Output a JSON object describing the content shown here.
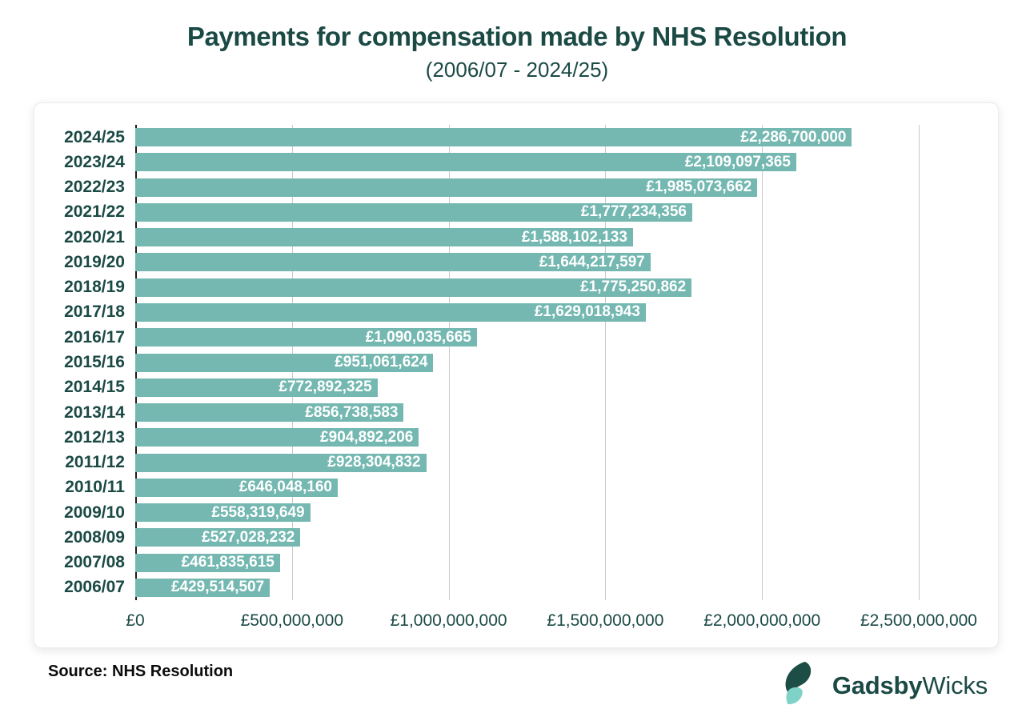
{
  "header": {
    "title": "Payments for compensation made by NHS Resolution",
    "subtitle": "(2006/07 - 2024/25)"
  },
  "chart_data": {
    "type": "bar",
    "orientation": "horizontal",
    "title": "Payments for compensation made by NHS Resolution",
    "subtitle": "(2006/07 - 2024/25)",
    "categories": [
      "2024/25",
      "2023/24",
      "2022/23",
      "2021/22",
      "2020/21",
      "2019/20",
      "2018/19",
      "2017/18",
      "2016/17",
      "2015/16",
      "2014/15",
      "2013/14",
      "2012/13",
      "2011/12",
      "2010/11",
      "2009/10",
      "2008/09",
      "2007/08",
      "2006/07"
    ],
    "values": [
      2286700000,
      2109097365,
      1985073662,
      1777234356,
      1588102133,
      1644217597,
      1775250862,
      1629018943,
      1090035665,
      951061624,
      772892325,
      856738583,
      904892206,
      928304832,
      646048160,
      558319649,
      527028232,
      461835615,
      429514507
    ],
    "value_labels": [
      "£2,286,700,000",
      "£2,109,097,365",
      "£1,985,073,662",
      "£1,777,234,356",
      "£1,588,102,133",
      "£1,644,217,597",
      "£1,775,250,862",
      "£1,629,018,943",
      "£1,090,035,665",
      "£951,061,624",
      "£772,892,325",
      "£856,738,583",
      "£904,892,206",
      "£928,304,832",
      "£646,048,160",
      "£558,319,649",
      "£527,028,232",
      "£461,835,615",
      "£429,514,507"
    ],
    "xlabel": "",
    "ylabel": "",
    "xlim": [
      0,
      2500000000
    ],
    "x_ticks": [
      "£0",
      "£500,000,000",
      "£1,000,000,000",
      "£1,500,000,000",
      "£2,000,000,000",
      "£2,500,000,000"
    ],
    "grid": "vertical-only",
    "legend": "none"
  },
  "footer": {
    "source": "Source: NHS Resolution",
    "logo_bold": "Gadsby",
    "logo_regular": "Wicks"
  },
  "colors": {
    "bar": "#74b8b1",
    "ink": "#1b4a45",
    "gridline": "#c9c9c9",
    "axis_line": "#1c1c1c",
    "logo_leaf_dark": "#1d4e46",
    "logo_leaf_light": "#7fd2c7"
  }
}
